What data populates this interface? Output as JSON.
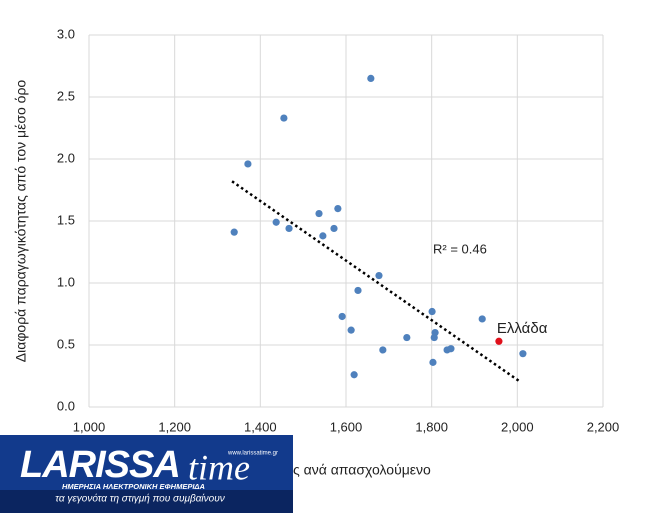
{
  "chart_data": {
    "type": "scatter",
    "x_label": "ς ανά απασχολούμενο",
    "y_label": "Διαφορά παραγωγικότητας από τον μέσο όρο",
    "series": [
      {
        "color": "#4f81bd",
        "x": [
          1339,
          1371,
          1455,
          1437,
          1467,
          1537,
          1546,
          1572,
          1581,
          1658,
          1677,
          1628,
          1591,
          1612,
          1686,
          1619,
          1742,
          1801,
          1808,
          1806,
          1803,
          1836,
          1845,
          1918,
          2013
        ],
        "values": [
          1.41,
          1.96,
          2.33,
          1.49,
          1.44,
          1.56,
          1.38,
          1.44,
          1.6,
          2.65,
          1.06,
          0.94,
          0.73,
          0.62,
          0.46,
          0.26,
          0.56,
          0.77,
          0.6,
          0.56,
          0.36,
          0.46,
          0.47,
          0.71,
          0.43
        ]
      },
      {
        "name": "Ελλάδα",
        "color": "#e0101b",
        "x": [
          1957
        ],
        "values": [
          0.53
        ]
      }
    ],
    "trendline": {
      "x": [
        1334,
        2004
      ],
      "values": [
        1.82,
        0.21
      ],
      "annotation": "R² = 0.46"
    },
    "xlim": [
      1000,
      2200
    ],
    "xticks": [
      {
        "value": 1000,
        "label": "1,000"
      },
      {
        "value": 1200,
        "label": "1,200"
      },
      {
        "value": 1400,
        "label": "1,400"
      },
      {
        "value": 1600,
        "label": "1,600"
      },
      {
        "value": 1800,
        "label": "1,800"
      },
      {
        "value": 2000,
        "label": "2,000"
      },
      {
        "value": 2200,
        "label": "2,200"
      }
    ],
    "ylim": [
      0,
      3
    ],
    "yticks": [
      {
        "value": 0,
        "label": "0.0"
      },
      {
        "value": 0.5,
        "label": "0.5"
      },
      {
        "value": 1,
        "label": "1.0"
      },
      {
        "value": 1.5,
        "label": "1.5"
      },
      {
        "value": 2,
        "label": "2.0"
      },
      {
        "value": 2.5,
        "label": "2.5"
      },
      {
        "value": 3,
        "label": "3.0"
      }
    ],
    "grid": true
  },
  "logo": {
    "name_left": "LARISSA",
    "name_right": "time",
    "tagline": "ΗΜΕΡΗΣΙΑ ΗΛΕΚΤΡΟΝΙΚΗ ΕΦΗΜΕΡΙΔΑ",
    "url": "www.larissatime.gr",
    "slogan": "τα γεγονότα τη στιγμή που συμβαίνουν"
  }
}
